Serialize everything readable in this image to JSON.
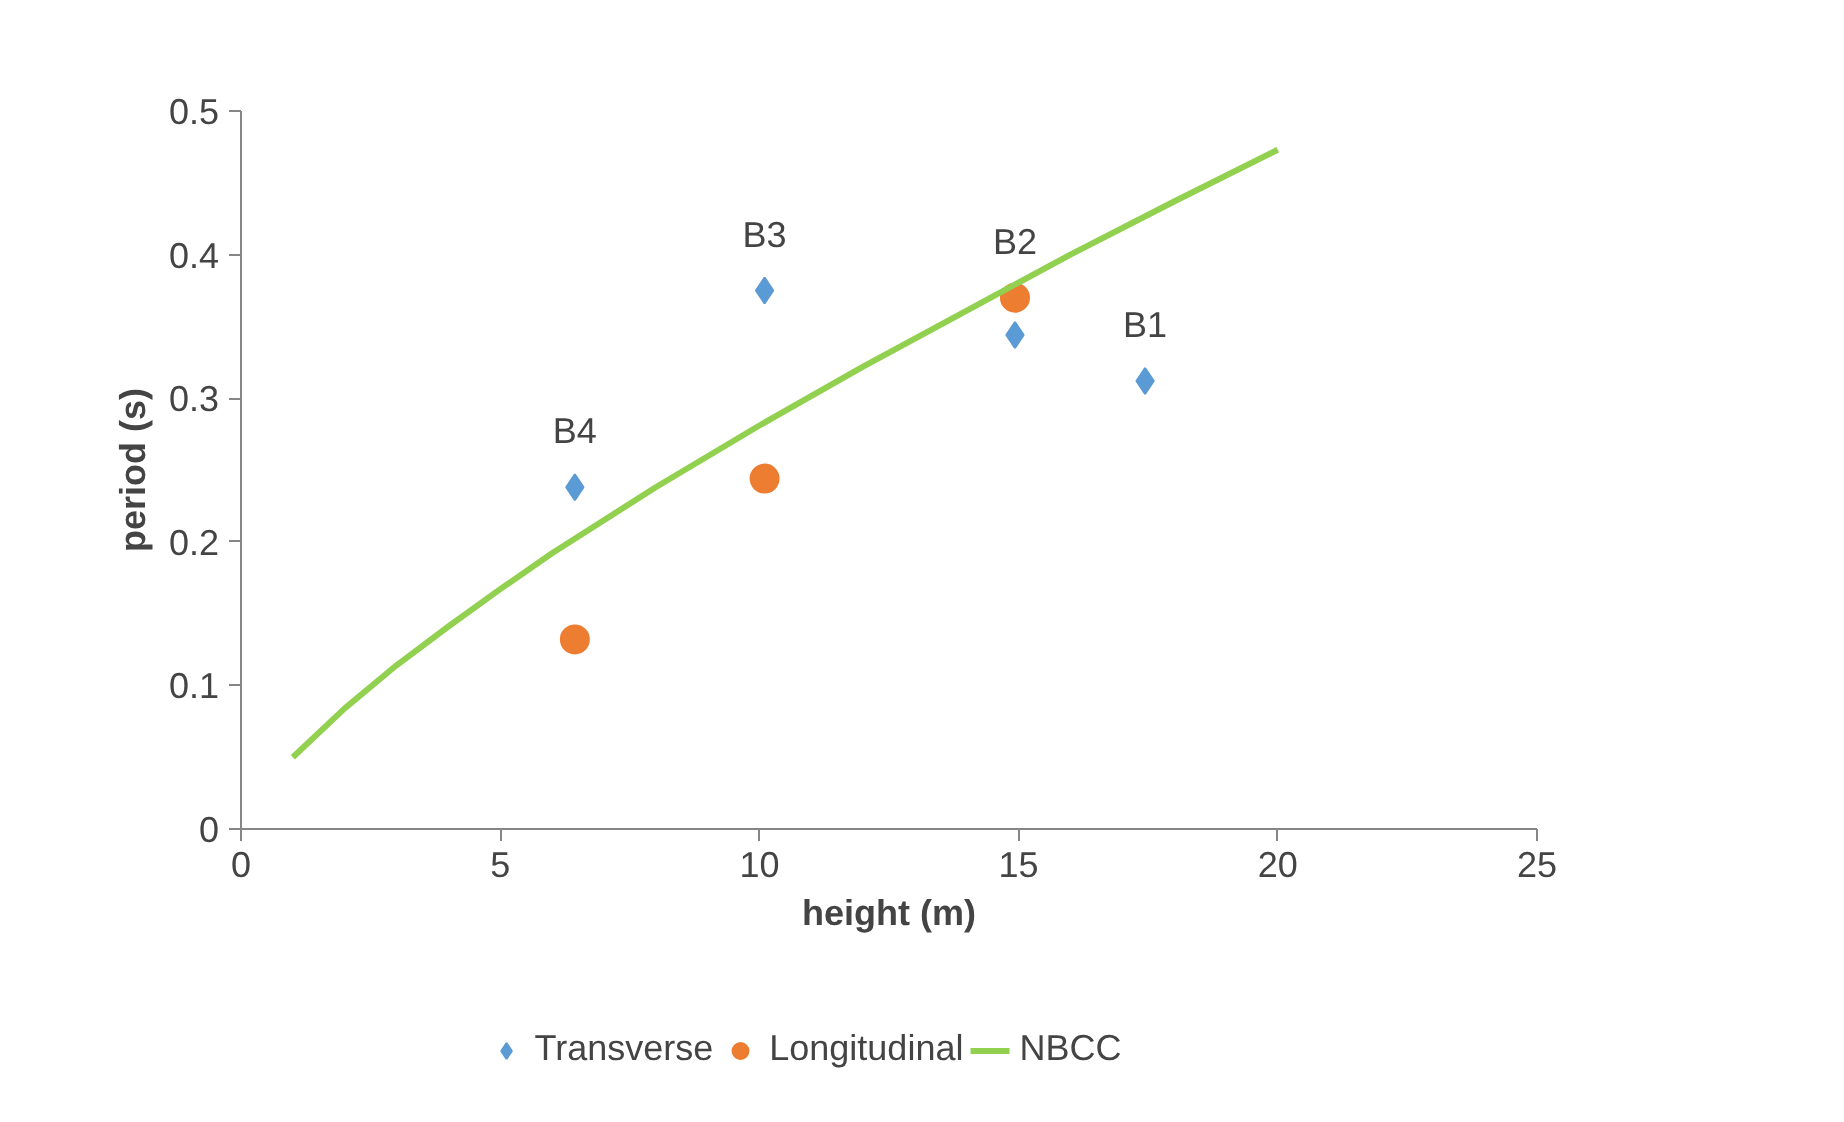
{
  "chart_data": {
    "type": "scatter",
    "xlabel": "height (m)",
    "ylabel": "period (s)",
    "xlim": [
      0,
      25
    ],
    "xticks": [
      0,
      5,
      10,
      15,
      20,
      25
    ],
    "ylim": [
      0,
      0.5
    ],
    "yticks": [
      0,
      0.1,
      0.2,
      0.3,
      0.4,
      0.5
    ],
    "grid": false,
    "legend": "bottom",
    "series": [
      {
        "name": "Transverse",
        "marker": "diamond",
        "color": "#5b9bd5",
        "x": [
          6.44,
          10.1,
          14.93,
          17.44
        ],
        "values": [
          0.238,
          0.375,
          0.344,
          0.312
        ]
      },
      {
        "name": "Longitudinal",
        "marker": "circle",
        "color": "#ed7d31",
        "x": [
          6.44,
          10.1,
          14.93
        ],
        "values": [
          0.132,
          0.244,
          0.37
        ]
      },
      {
        "name": "NBCC",
        "type": "line",
        "marker": "none",
        "color": "#92d050",
        "x": [
          1,
          2,
          3,
          4,
          5,
          6,
          8,
          10,
          12,
          14,
          16,
          18,
          20
        ],
        "values": [
          0.05,
          0.084,
          0.114,
          0.141,
          0.167,
          0.192,
          0.238,
          0.281,
          0.322,
          0.361,
          0.4,
          0.437,
          0.473
        ]
      }
    ],
    "annotations": [
      {
        "text": "B1",
        "x": 17.44,
        "y": 0.312
      },
      {
        "text": "B2",
        "x": 14.93,
        "y": 0.37
      },
      {
        "text": "B3",
        "x": 10.1,
        "y": 0.375
      },
      {
        "text": "B4",
        "x": 6.44,
        "y": 0.238
      }
    ]
  }
}
